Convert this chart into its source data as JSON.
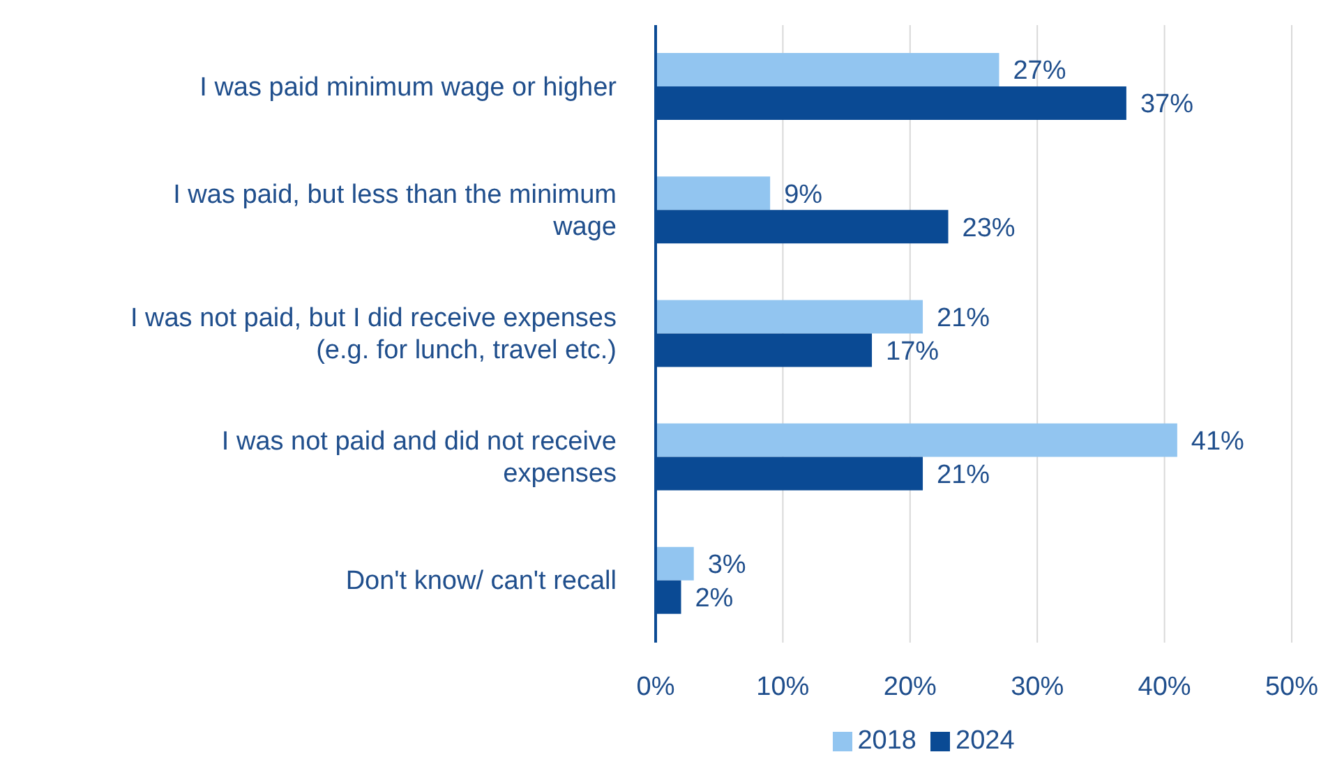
{
  "chart_data": {
    "type": "bar",
    "orientation": "horizontal",
    "categories": [
      "I was paid minimum wage or higher",
      "I was paid, but less than the minimum wage",
      "I was not paid, but I did receive expenses (e.g. for lunch, travel etc.)",
      "I was not paid and did not receive expenses",
      "Don't know/ can't recall"
    ],
    "series": [
      {
        "name": "2018",
        "color": "#92c5f0",
        "values": [
          27,
          9,
          21,
          41,
          3
        ],
        "value_labels": [
          "27%",
          "9%",
          "21%",
          "41%",
          "3%"
        ]
      },
      {
        "name": "2024",
        "color": "#0a4a94",
        "values": [
          37,
          23,
          17,
          21,
          2
        ],
        "value_labels": [
          "37%",
          "23%",
          "17%",
          "21%",
          "2%"
        ]
      }
    ],
    "xlim": [
      0,
      50
    ],
    "xticks": [
      {
        "value": 0,
        "label": "0%"
      },
      {
        "value": 10,
        "label": "10%"
      },
      {
        "value": 20,
        "label": "20%"
      },
      {
        "value": 30,
        "label": "30%"
      },
      {
        "value": 40,
        "label": "40%"
      },
      {
        "value": 50,
        "label": "50%"
      }
    ],
    "grid": "x",
    "legend": "bottom"
  }
}
